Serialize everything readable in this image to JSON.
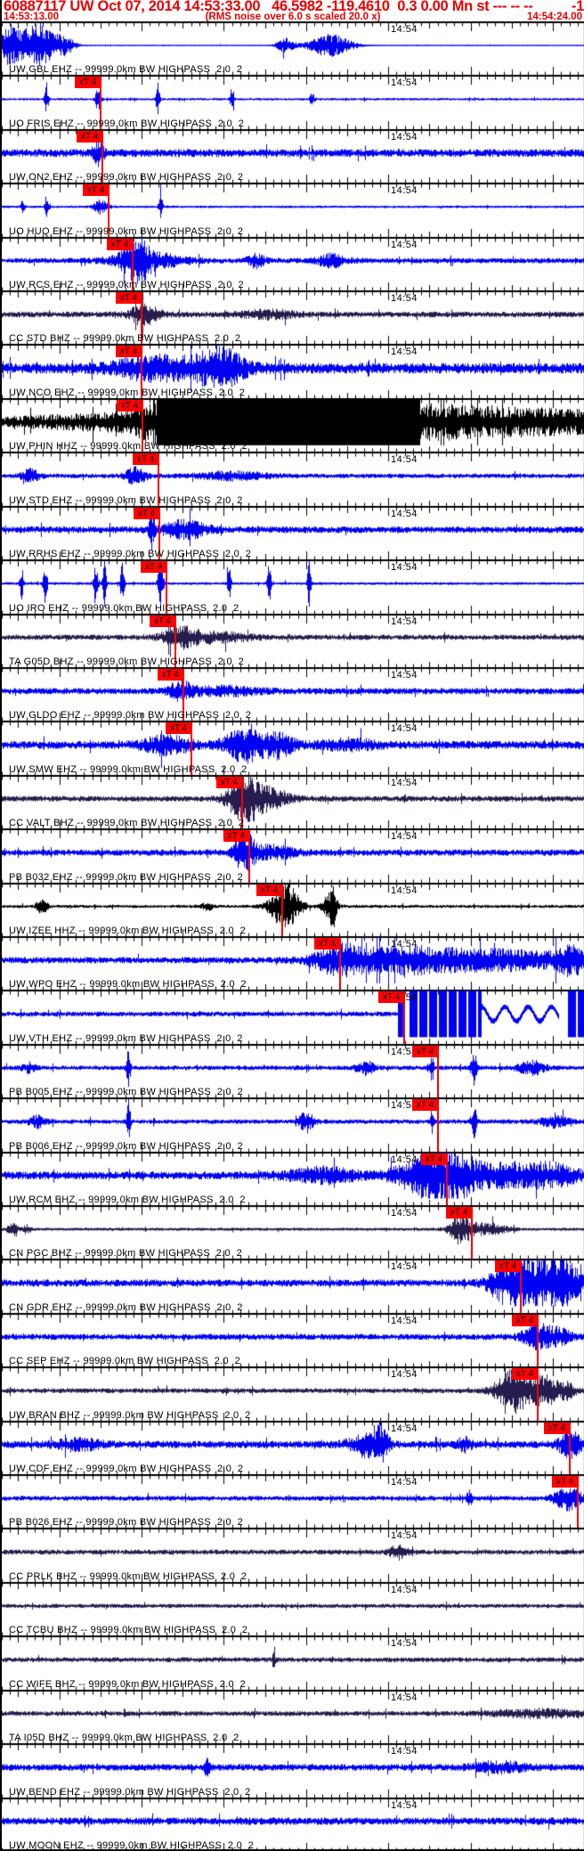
{
  "header": {
    "line1_left": "60887117 UW Oct 07, 2014 14:53:33.00   46.5982 -119.4610  0.3 0.00 Mn st --- -- --",
    "line1_right": "-1",
    "line2_left": "14:53:13.00",
    "line2_center": "(RMS noise over 6.0 s scaled 20.0 x)",
    "line2_right": "14:54:24.00"
  },
  "pick_flag_label": "xT 4",
  "time_tick_label": "14:54",
  "colors": {
    "trace_blue": "#0000f2",
    "trace_navy": "#261c4e",
    "trace_black": "#000000",
    "pick_red": "#ff0000",
    "header_red": "#e60000",
    "axis_black": "#000000"
  },
  "traces": [
    {
      "id": "gbl",
      "label": "UW GBL EHZ -- 99999.0km BW HIGHPASS  2.0  2",
      "color": "blue",
      "pick": null,
      "base": 0.6,
      "events": [
        [
          8,
          10,
          22
        ],
        [
          38,
          20,
          26
        ],
        [
          70,
          12,
          10
        ],
        [
          318,
          10,
          8
        ],
        [
          368,
          24,
          13
        ]
      ]
    },
    {
      "id": "fris",
      "label": "UO FRIS EHZ -- 99999.0km BW HIGHPASS  2.0  2",
      "color": "blue",
      "pick": 111,
      "base": 1.4,
      "events": [
        [
          50,
          2,
          18
        ],
        [
          108,
          3,
          15
        ],
        [
          175,
          2,
          22
        ],
        [
          258,
          2,
          14
        ],
        [
          348,
          3,
          6
        ]
      ]
    },
    {
      "id": "on2",
      "label": "UW ON2 EHZ -- 99999.0km BW HIGHPASS  2.0  2",
      "color": "blue",
      "pick": 113,
      "base": 4.5,
      "events": [
        [
          108,
          6,
          12
        ]
      ]
    },
    {
      "id": "huq",
      "label": "UO HUQ EHZ -- 99999.0km BW HIGHPASS  2.0  2",
      "color": "blue",
      "pick": 120,
      "base": 1.4,
      "events": [
        [
          23,
          2,
          8
        ],
        [
          50,
          2,
          14
        ],
        [
          112,
          8,
          9
        ],
        [
          178,
          2,
          16
        ]
      ]
    },
    {
      "id": "rcs",
      "label": "UW RCS EHZ -- 99999.0km BW HIGHPASS  2.0  2",
      "color": "blue",
      "pick": 147,
      "base": 3,
      "events": [
        [
          150,
          14,
          22
        ],
        [
          165,
          40,
          8
        ],
        [
          285,
          10,
          7
        ],
        [
          370,
          18,
          6
        ]
      ]
    },
    {
      "id": "stdcc",
      "label": "CC STD BHZ -- 99999.0km BW HIGHPASS  2.0  2",
      "color": "navy",
      "pick": 157,
      "base": 3.2,
      "events": [
        [
          160,
          16,
          11
        ],
        [
          300,
          30,
          4
        ]
      ]
    },
    {
      "id": "nco",
      "label": "UW NCO EHZ -- 99999.0km BW HIGHPASS  2.0  2",
      "color": "blue",
      "pick": 157,
      "base": 6,
      "events": [
        [
          165,
          40,
          8
        ],
        [
          245,
          25,
          16
        ],
        [
          210,
          60,
          6
        ]
      ]
    },
    {
      "id": "phin",
      "label": "UW PHIN HHZ -- 99999.0km BW HIGHPASS  2.0  2",
      "color": "black",
      "pick": 158,
      "base": 8,
      "events": [],
      "special": "phin"
    },
    {
      "id": "stduw",
      "label": "UW STD EHZ -- 99999.0km BW HIGHPASS  2.0  2",
      "color": "blue",
      "pick": 176,
      "base": 2.6,
      "events": [
        [
          32,
          10,
          7
        ],
        [
          150,
          12,
          9
        ],
        [
          260,
          40,
          4
        ]
      ]
    },
    {
      "id": "rrhs",
      "label": "UW RRHS EHZ -- 99999.0km BW HIGHPASS  2.0  2",
      "color": "blue",
      "pick": 177,
      "base": 3.8,
      "events": [
        [
          168,
          3,
          24
        ],
        [
          205,
          25,
          9
        ]
      ]
    },
    {
      "id": "iro",
      "label": "UO IRO EHZ -- 99999.0km BW HIGHPASS  2.0  2",
      "color": "blue",
      "pick": 185,
      "base": 1.6,
      "events": [
        [
          22,
          2,
          17
        ],
        [
          48,
          2,
          24
        ],
        [
          105,
          2,
          28
        ],
        [
          115,
          2,
          22
        ],
        [
          135,
          2,
          28
        ],
        [
          178,
          3,
          26
        ],
        [
          255,
          2,
          19
        ],
        [
          300,
          2,
          24
        ],
        [
          345,
          2,
          28
        ]
      ]
    },
    {
      "id": "g05d",
      "label": "TA G05D BHZ -- 99999.0km BW HIGHPASS  2.0  2",
      "color": "navy",
      "pick": 195,
      "base": 3,
      "events": [
        [
          200,
          18,
          11
        ],
        [
          240,
          40,
          5
        ]
      ]
    },
    {
      "id": "gldo",
      "label": "UW GLDO EHZ -- 99999.0km BW HIGHPASS  2.0  2",
      "color": "blue",
      "pick": 204,
      "base": 3.6,
      "events": [
        [
          200,
          14,
          9
        ],
        [
          250,
          40,
          4
        ]
      ]
    },
    {
      "id": "smw",
      "label": "UW SMW EHZ -- 99999.0km BW HIGHPASS  2.0  2",
      "color": "blue",
      "pick": 213,
      "base": 4.5,
      "events": [
        [
          185,
          25,
          10
        ],
        [
          272,
          22,
          17
        ],
        [
          310,
          18,
          12
        ],
        [
          390,
          30,
          5
        ]
      ]
    },
    {
      "id": "valt",
      "label": "CC VALT BHZ -- 99999.0km BW HIGHPASS  2.0  2",
      "color": "navy",
      "pick": 270,
      "base": 3.2,
      "events": [
        [
          272,
          18,
          24
        ],
        [
          300,
          25,
          10
        ]
      ]
    },
    {
      "id": "b032",
      "label": "PB B032 EHZ -- 99999.0km BW HIGHPASS  2.0  2",
      "color": "blue",
      "pick": 278,
      "base": 3.6,
      "events": [
        [
          272,
          10,
          22
        ],
        [
          300,
          30,
          7
        ]
      ]
    },
    {
      "id": "izee",
      "label": "UW IZEE HHZ -- 99999.0km BW HIGHPASS  2.0  2",
      "color": "black",
      "pick": 315,
      "base": 1.8,
      "events": [
        [
          45,
          6,
          9
        ],
        [
          230,
          6,
          5
        ],
        [
          318,
          16,
          26
        ],
        [
          368,
          8,
          14
        ],
        [
          372,
          3,
          20
        ]
      ]
    },
    {
      "id": "wpo",
      "label": "UW WPO EHZ -- 99999.0km BW HIGHPASS  2.0  2",
      "color": "blue",
      "pick": 380,
      "base": 3.6,
      "events": [
        [
          380,
          30,
          14
        ],
        [
          450,
          60,
          12
        ],
        [
          560,
          80,
          10
        ],
        [
          640,
          20,
          12
        ]
      ]
    },
    {
      "id": "vth",
      "label": "UW VTH EHZ -- 99999.0km BW HIGHPASS  2.0  2",
      "color": "blue",
      "pick": 452,
      "base": 2.8,
      "events": [],
      "special": "vth"
    },
    {
      "id": "b005",
      "label": "PB B005 EHZ -- 99999.0km BW HIGHPASS  2.0  2",
      "color": "blue",
      "pick": 490,
      "base": 2.6,
      "events": [
        [
          142,
          2,
          26
        ],
        [
          30,
          8,
          5
        ],
        [
          408,
          10,
          7
        ],
        [
          483,
          2,
          16
        ],
        [
          530,
          3,
          22
        ],
        [
          595,
          15,
          7
        ]
      ]
    },
    {
      "id": "b006",
      "label": "PB B006 EHZ -- 99999.0km BW HIGHPASS  2.0  2",
      "color": "blue",
      "pick": 490,
      "base": 2.6,
      "events": [
        [
          142,
          2,
          24
        ],
        [
          40,
          10,
          6
        ],
        [
          342,
          8,
          11
        ],
        [
          483,
          2,
          13
        ],
        [
          530,
          3,
          20
        ],
        [
          620,
          15,
          6
        ]
      ]
    },
    {
      "id": "rcm",
      "label": "UW RCM EHZ -- 99999.0km BW HIGHPASS  2.0  2",
      "color": "blue",
      "pick": 500,
      "base": 4.5,
      "events": [
        [
          360,
          40,
          7
        ],
        [
          470,
          30,
          16
        ],
        [
          505,
          25,
          22
        ],
        [
          560,
          50,
          11
        ],
        [
          620,
          30,
          9
        ]
      ]
    },
    {
      "id": "pgc",
      "label": "CN PGC BHZ -- 99999.0km BW HIGHPASS  2.0  2",
      "color": "navy",
      "pick": 528,
      "base": 1.8,
      "events": [
        [
          12,
          6,
          6
        ],
        [
          28,
          4,
          5
        ],
        [
          515,
          12,
          16
        ],
        [
          545,
          20,
          7
        ]
      ]
    },
    {
      "id": "gdr",
      "label": "CN GDR EHZ -- 99999.0km BW HIGHPASS  2.0  2",
      "color": "blue",
      "pick": 583,
      "base": 4,
      "events": [
        [
          560,
          15,
          10
        ],
        [
          590,
          30,
          26
        ],
        [
          630,
          20,
          24
        ]
      ]
    },
    {
      "id": "sep",
      "label": "CC SEP EHZ -- 99999.0km BW HIGHPASS  2.0  2",
      "color": "blue",
      "pick": 602,
      "base": 3.4,
      "events": [
        [
          600,
          15,
          13
        ],
        [
          625,
          15,
          9
        ]
      ]
    },
    {
      "id": "bran",
      "label": "UW BRAN BHZ -- 99999.0km BW HIGHPASS  2.0  2",
      "color": "navy",
      "pick": 602,
      "base": 2.8,
      "events": [
        [
          575,
          20,
          24
        ],
        [
          610,
          15,
          16
        ],
        [
          635,
          10,
          8
        ]
      ]
    },
    {
      "id": "cdf",
      "label": "UW CDF EHZ -- 99999.0km BW HIGHPASS  2.0  2",
      "color": "blue",
      "pick": 638,
      "base": 4.2,
      "events": [
        [
          85,
          25,
          5
        ],
        [
          410,
          20,
          12
        ],
        [
          425,
          8,
          16
        ],
        [
          520,
          8,
          7
        ],
        [
          638,
          12,
          14
        ]
      ]
    },
    {
      "id": "b026",
      "label": "PB B026 EHZ -- 99999.0km BW HIGHPASS  2.0  2",
      "color": "blue",
      "pick": 647,
      "base": 2.8,
      "events": [
        [
          525,
          3,
          8
        ],
        [
          635,
          15,
          12
        ]
      ]
    },
    {
      "id": "prlk",
      "label": "CC PRLK BHZ -- 99999.0km BW HIGHPASS  2.0  2",
      "color": "navy",
      "pick": null,
      "base": 2.8,
      "events": [
        [
          445,
          10,
          7
        ]
      ]
    },
    {
      "id": "tcbu",
      "label": "CC TCBU BHZ -- 99999.0km BW HIGHPASS  2.0  2",
      "color": "navy",
      "pick": null,
      "base": 2.4,
      "events": []
    },
    {
      "id": "wife",
      "label": "CC WIFE BHZ -- 99999.0km BW HIGHPASS  2.0  2",
      "color": "navy",
      "pick": null,
      "base": 2.8,
      "events": [
        [
          305,
          2,
          7
        ]
      ]
    },
    {
      "id": "i05d",
      "label": "TA I05D BHZ -- 99999.0km BW HIGHPASS  2.0  2",
      "color": "navy",
      "pick": null,
      "base": 2.8,
      "events": [
        [
          600,
          50,
          4
        ]
      ]
    },
    {
      "id": "bend",
      "label": "UW BEND EHZ -- 99999.0km BW HIGHPASS  2.0  2",
      "color": "blue",
      "pick": null,
      "base": 3.8,
      "events": [
        [
          230,
          3,
          11
        ],
        [
          560,
          30,
          5
        ]
      ]
    },
    {
      "id": "moon",
      "label": "UW MOON EHZ -- 99999.0km BW HIGHPASS  2.0  2",
      "color": "blue",
      "pick": null,
      "base": 4.2,
      "events": []
    }
  ]
}
